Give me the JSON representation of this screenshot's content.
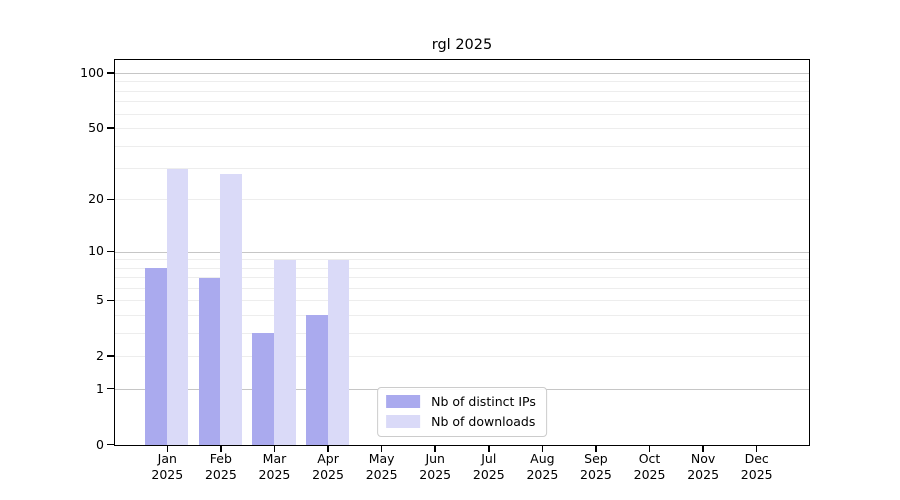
{
  "chart_data": {
    "type": "bar",
    "title": "rgl 2025",
    "categories": [
      "Jan\n2025",
      "Feb\n2025",
      "Mar\n2025",
      "Apr\n2025",
      "May\n2025",
      "Jun\n2025",
      "Jul\n2025",
      "Aug\n2025",
      "Sep\n2025",
      "Oct\n2025",
      "Nov\n2025",
      "Dec\n2025"
    ],
    "series": [
      {
        "name": "Nb of distinct IPs",
        "color": "#aaaaee",
        "values": [
          8,
          7,
          3,
          4,
          0,
          0,
          0,
          0,
          0,
          0,
          0,
          0
        ]
      },
      {
        "name": "Nb of downloads",
        "color": "#dadaf8",
        "values": [
          30,
          28,
          9,
          9,
          0,
          0,
          0,
          0,
          0,
          0,
          0,
          0
        ]
      }
    ],
    "xlabel": "",
    "ylabel": "",
    "y_scale": "log1p",
    "ylim": [
      0,
      116
    ],
    "y_tick_values": [
      0,
      1,
      2,
      5,
      10,
      20,
      50,
      100
    ],
    "y_major_gridlines": [
      1,
      10,
      100
    ],
    "y_minor_gridlines": [
      2,
      3,
      4,
      5,
      6,
      7,
      8,
      9,
      20,
      30,
      40,
      50,
      60,
      70,
      80,
      90
    ],
    "grid": true,
    "legend_position": "lower center",
    "colors": {
      "grid_major": "#c6c6c6",
      "grid_minor": "#ededed",
      "spine": "#000000",
      "text": "#000000",
      "background": "#ffffff",
      "legend_border": "#cccccc"
    }
  }
}
